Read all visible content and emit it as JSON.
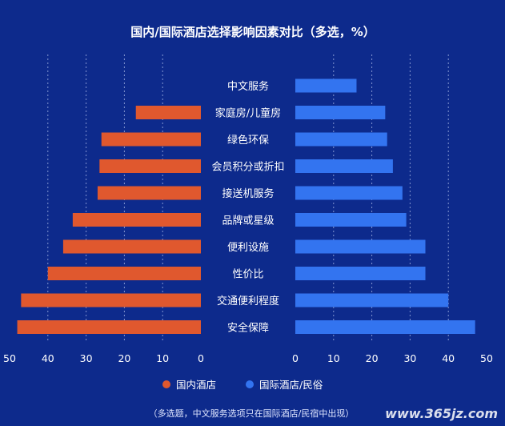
{
  "chart_data": {
    "type": "bar",
    "title": "国内/国际酒店选择影响因素对比（多选，%）",
    "categories": [
      "中文服务",
      "家庭房/儿童房",
      "绿色环保",
      "会员积分或折扣",
      "接送机服务",
      "品牌或星级",
      "便利设施",
      "性价比",
      "交通便利程度",
      "安全保障"
    ],
    "series": [
      {
        "name": "国内酒店",
        "color": "#e0582e",
        "values": [
          null,
          17,
          26,
          26.5,
          27,
          33.5,
          36,
          40,
          47,
          48
        ]
      },
      {
        "name": "国际酒店/民俗",
        "color": "#3374f0",
        "values": [
          16,
          23.5,
          24,
          25.5,
          28,
          29,
          34,
          34,
          40,
          47
        ]
      }
    ],
    "left_axis": {
      "ticks": [
        "50",
        "40",
        "30",
        "20",
        "10",
        "0"
      ],
      "range": [
        0,
        50
      ]
    },
    "right_axis": {
      "ticks": [
        "0",
        "10",
        "20",
        "30",
        "40",
        "50"
      ],
      "range": [
        0,
        50
      ]
    },
    "grid": true,
    "legend_position": "bottom",
    "note": "（多选题，中文服务选项只在国际酒店/民宿中出现）",
    "watermark": "www.365jz.com"
  }
}
